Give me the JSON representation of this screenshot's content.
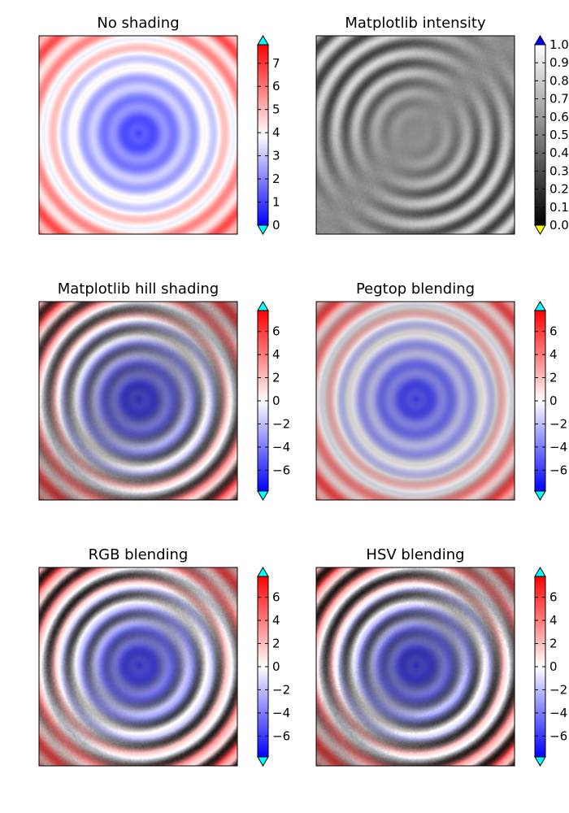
{
  "chart_data": [
    {
      "type": "heatmap",
      "title": "No shading",
      "pattern": "concentric-rings",
      "colormap": "bwr",
      "colorbar": {
        "ticks": [
          "0",
          "1",
          "2",
          "3",
          "4",
          "5",
          "6",
          "7"
        ],
        "range": [
          0,
          7.8
        ],
        "extend_colors": [
          "#00ffff",
          "#00ffff"
        ]
      }
    },
    {
      "type": "heatmap",
      "title": "Matplotlib intensity",
      "pattern": "concentric-rings",
      "colormap": "gray",
      "colorbar": {
        "ticks": [
          "0.0",
          "0.1",
          "0.2",
          "0.3",
          "0.4",
          "0.5",
          "0.6",
          "0.7",
          "0.8",
          "0.9",
          "1.0"
        ],
        "range": [
          0,
          1.0
        ],
        "extend_colors": [
          "#ffff00",
          "#0000ff"
        ]
      }
    },
    {
      "type": "heatmap",
      "title": "Matplotlib hill shading",
      "pattern": "concentric-rings",
      "colormap": "bwr",
      "shading": "hill",
      "colorbar": {
        "ticks": [
          "−6",
          "−4",
          "−2",
          "0",
          "2",
          "4",
          "6"
        ],
        "range": [
          -7.8,
          7.8
        ],
        "extend_colors": [
          "#00ffff",
          "#00ffff"
        ]
      }
    },
    {
      "type": "heatmap",
      "title": "Pegtop blending",
      "pattern": "concentric-rings",
      "colormap": "bwr",
      "shading": "pegtop",
      "colorbar": {
        "ticks": [
          "−6",
          "−4",
          "−2",
          "0",
          "2",
          "4",
          "6"
        ],
        "range": [
          -7.8,
          7.8
        ],
        "extend_colors": [
          "#00ffff",
          "#00ffff"
        ]
      }
    },
    {
      "type": "heatmap",
      "title": "RGB blending",
      "pattern": "concentric-rings",
      "colormap": "bwr",
      "shading": "rgb",
      "colorbar": {
        "ticks": [
          "−6",
          "−4",
          "−2",
          "0",
          "2",
          "4",
          "6"
        ],
        "range": [
          -7.8,
          7.8
        ],
        "extend_colors": [
          "#00ffff",
          "#00ffff"
        ]
      }
    },
    {
      "type": "heatmap",
      "title": "HSV blending",
      "pattern": "concentric-rings",
      "colormap": "bwr",
      "shading": "hsv",
      "colorbar": {
        "ticks": [
          "−6",
          "−4",
          "−2",
          "0",
          "2",
          "4",
          "6"
        ],
        "range": [
          -7.8,
          7.8
        ],
        "extend_colors": [
          "#00ffff",
          "#00ffff"
        ]
      }
    }
  ]
}
